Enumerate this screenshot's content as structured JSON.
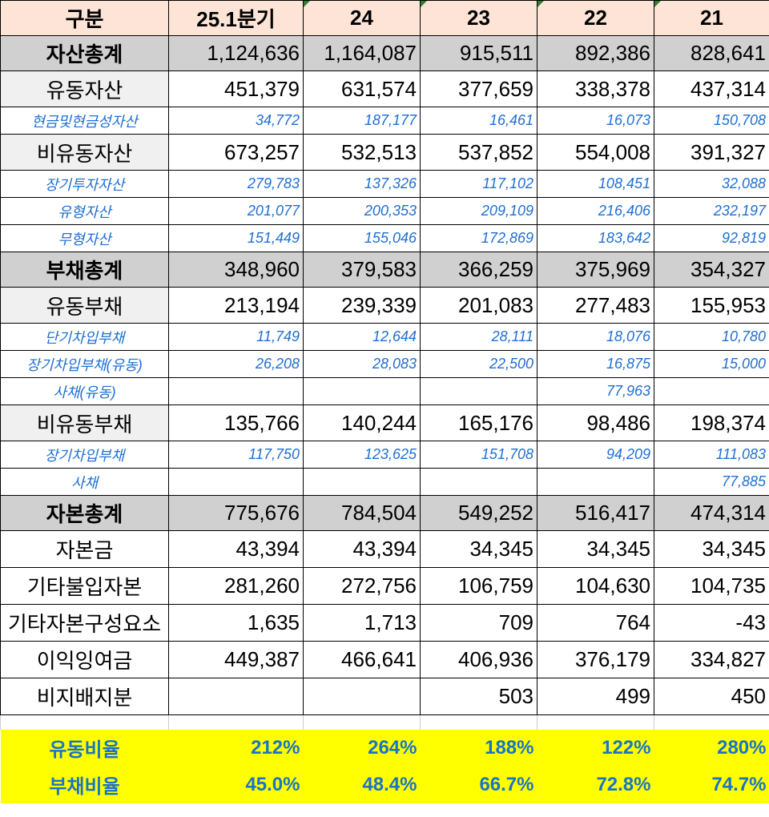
{
  "header": [
    "구분",
    "25.1분기",
    "24",
    "23",
    "22",
    "21"
  ],
  "rows": [
    {
      "style": "total",
      "label": "자산총계",
      "values": [
        "1,124,636",
        "1,164,087",
        "915,511",
        "892,386",
        "828,641"
      ]
    },
    {
      "style": "main",
      "label": "유동자산",
      "values": [
        "451,379",
        "631,574",
        "377,659",
        "338,378",
        "437,314"
      ]
    },
    {
      "style": "sub",
      "label": "현금및현금성자산",
      "values": [
        "34,772",
        "187,177",
        "16,461",
        "16,073",
        "150,708"
      ]
    },
    {
      "style": "main",
      "label": "비유동자산",
      "values": [
        "673,257",
        "532,513",
        "537,852",
        "554,008",
        "391,327"
      ]
    },
    {
      "style": "sub",
      "label": "장기투자자산",
      "values": [
        "279,783",
        "137,326",
        "117,102",
        "108,451",
        "32,088"
      ]
    },
    {
      "style": "sub",
      "label": "유형자산",
      "values": [
        "201,077",
        "200,353",
        "209,109",
        "216,406",
        "232,197"
      ]
    },
    {
      "style": "sub",
      "label": "무형자산",
      "values": [
        "151,449",
        "155,046",
        "172,869",
        "183,642",
        "92,819"
      ]
    },
    {
      "style": "total",
      "label": "부채총계",
      "values": [
        "348,960",
        "379,583",
        "366,259",
        "375,969",
        "354,327"
      ]
    },
    {
      "style": "main",
      "label": "유동부채",
      "values": [
        "213,194",
        "239,339",
        "201,083",
        "277,483",
        "155,953"
      ]
    },
    {
      "style": "sub",
      "label": "단기차입부채",
      "values": [
        "11,749",
        "12,644",
        "28,111",
        "18,076",
        "10,780"
      ]
    },
    {
      "style": "sub",
      "label": "장기차입부채(유동)",
      "values": [
        "26,208",
        "28,083",
        "22,500",
        "16,875",
        "15,000"
      ]
    },
    {
      "style": "sub",
      "label": "사채(유동)",
      "values": [
        "",
        "",
        "",
        "77,963",
        ""
      ]
    },
    {
      "style": "main",
      "label": "비유동부채",
      "values": [
        "135,766",
        "140,244",
        "165,176",
        "98,486",
        "198,374"
      ]
    },
    {
      "style": "sub",
      "label": "장기차입부채",
      "values": [
        "117,750",
        "123,625",
        "151,708",
        "94,209",
        "111,083"
      ]
    },
    {
      "style": "sub",
      "label": "사채",
      "values": [
        "",
        "",
        "",
        "",
        "77,885"
      ]
    },
    {
      "style": "total",
      "label": "자본총계",
      "values": [
        "775,676",
        "784,504",
        "549,252",
        "516,417",
        "474,314"
      ]
    },
    {
      "style": "main2",
      "label": "자본금",
      "values": [
        "43,394",
        "43,394",
        "34,345",
        "34,345",
        "34,345"
      ]
    },
    {
      "style": "main2",
      "label": "기타불입자본",
      "values": [
        "281,260",
        "272,756",
        "106,759",
        "104,630",
        "104,735"
      ]
    },
    {
      "style": "main2",
      "label": "기타자본구성요소",
      "values": [
        "1,635",
        "1,713",
        "709",
        "764",
        "-43"
      ]
    },
    {
      "style": "main2",
      "label": "이익잉여금",
      "values": [
        "449,387",
        "466,641",
        "406,936",
        "376,179",
        "334,827"
      ]
    },
    {
      "style": "main2",
      "label": "비지배지분",
      "values": [
        "",
        "",
        "503",
        "499",
        "450"
      ]
    }
  ],
  "ratios": [
    {
      "label": "유동비율",
      "values": [
        "212%",
        "264%",
        "188%",
        "122%",
        "280%"
      ]
    },
    {
      "label": "부채비율",
      "values": [
        "45.0%",
        "48.4%",
        "66.7%",
        "72.8%",
        "74.7%"
      ]
    }
  ],
  "colors": {
    "header_bg": "#fde4d6",
    "total_bg": "#d0d0d0",
    "sub_text": "#1f6fd0",
    "ratio_bg": "#ffff00",
    "ratio_text": "#1a73c8"
  }
}
